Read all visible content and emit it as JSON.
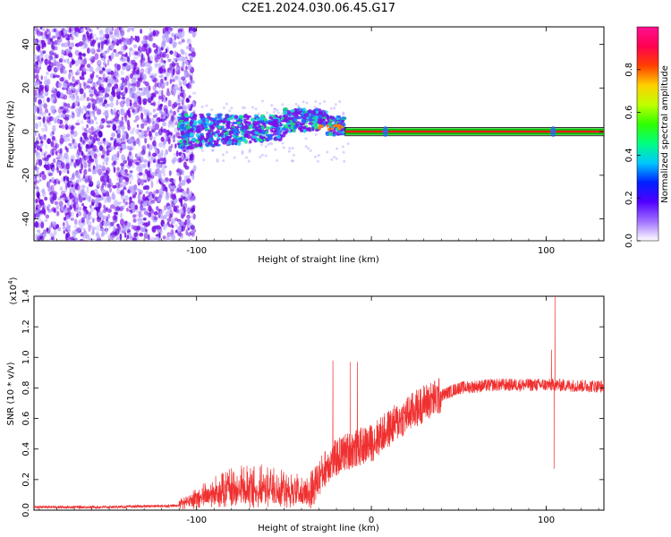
{
  "page": {
    "title": "C2E1.2024.030.06.45.G17"
  },
  "colors": {
    "scatter_low": "#b9a6ff",
    "scatter_mid": "#7a12e8",
    "scatter_high": "#5a00d8",
    "core_green": "#19e07a",
    "core_cyan": "#17d3e8",
    "core_blue": "#1e6bff",
    "line_red": "#ff1a1a",
    "line_green": "#00c000",
    "snr_red": "#f03030"
  },
  "chart_data": [
    {
      "type": "heatmap",
      "title": "C2E1.2024.030.06.45.G17",
      "xlabel": "Height of straight line (km)",
      "ylabel": "Frequency (Hz)",
      "xlim": [
        -193,
        133
      ],
      "ylim": [
        -50,
        48
      ],
      "x_ticks": [
        -100,
        0,
        100
      ],
      "x_tick_labels": [
        "-100",
        "",
        "100"
      ],
      "y_ticks": [
        -40,
        -20,
        0,
        20,
        40
      ],
      "y_tick_labels": [
        "-40",
        "-20",
        "0",
        "20",
        "40"
      ],
      "regions": [
        {
          "name": "noise",
          "x_range": [
            -193,
            -105
          ],
          "freq_range": [
            -50,
            48
          ],
          "density": "high"
        },
        {
          "name": "signal-core",
          "x_range": [
            -110,
            -15
          ],
          "freq_start": [
            -105,
            0
          ],
          "freq_end": [
            -35,
            3
          ],
          "spread_hz": 8
        },
        {
          "name": "tone-line",
          "x_range": [
            -15,
            133
          ],
          "freq": 0,
          "spread_hz": 1.5
        }
      ],
      "colorbar": {
        "label": "Normalized spectral amplitude",
        "range": [
          0,
          1
        ],
        "ticks": [
          0.0,
          0.2,
          0.4,
          0.6,
          0.8
        ],
        "tick_labels": [
          "0.0",
          "0.2",
          "0.4",
          "0.6",
          "0.8"
        ],
        "stops": [
          "#ffffff",
          "#a070ff",
          "#5000ff",
          "#0020ff",
          "#00c8ff",
          "#00ff80",
          "#30ff00",
          "#c0ff00",
          "#ffd000",
          "#ff4000",
          "#ff0050",
          "#ff1090"
        ]
      }
    },
    {
      "type": "line",
      "xlabel": "Height of straight line (km)",
      "ylabel": "SNR (10 * v/v)",
      "scale_label": "(x10",
      "scale_exp": "4",
      "scale_close": ")",
      "xlim": [
        -193,
        133
      ],
      "ylim": [
        0.0,
        1.4
      ],
      "x_ticks": [
        -100,
        0,
        100
      ],
      "x_tick_labels": [
        "-100",
        "0",
        "100"
      ],
      "y_ticks": [
        0.0,
        0.2,
        0.4,
        0.6,
        0.8,
        1.0,
        1.2,
        1.4
      ],
      "y_tick_labels": [
        "0.0",
        "0.2",
        "0.4",
        "0.6",
        "0.8",
        "1.0",
        "1.2",
        "1.4"
      ],
      "envelope": [
        {
          "x": -193,
          "y": 0.02
        },
        {
          "x": -150,
          "y": 0.02
        },
        {
          "x": -110,
          "y": 0.03
        },
        {
          "x": -95,
          "y": 0.1
        },
        {
          "x": -80,
          "y": 0.15
        },
        {
          "x": -60,
          "y": 0.16
        },
        {
          "x": -50,
          "y": 0.14
        },
        {
          "x": -35,
          "y": 0.12
        },
        {
          "x": -25,
          "y": 0.3
        },
        {
          "x": -15,
          "y": 0.38
        },
        {
          "x": 0,
          "y": 0.44
        },
        {
          "x": 15,
          "y": 0.58
        },
        {
          "x": 30,
          "y": 0.7
        },
        {
          "x": 50,
          "y": 0.8
        },
        {
          "x": 70,
          "y": 0.82
        },
        {
          "x": 100,
          "y": 0.82
        },
        {
          "x": 133,
          "y": 0.81
        }
      ],
      "spikes": [
        {
          "x": -22,
          "y": 0.98
        },
        {
          "x": -12,
          "y": 0.97
        },
        {
          "x": -8,
          "y": 0.97
        },
        {
          "x": 103,
          "y": 1.05
        },
        {
          "x": 105,
          "y": 1.4
        },
        {
          "x": 104.5,
          "y": 0.27
        }
      ]
    }
  ]
}
